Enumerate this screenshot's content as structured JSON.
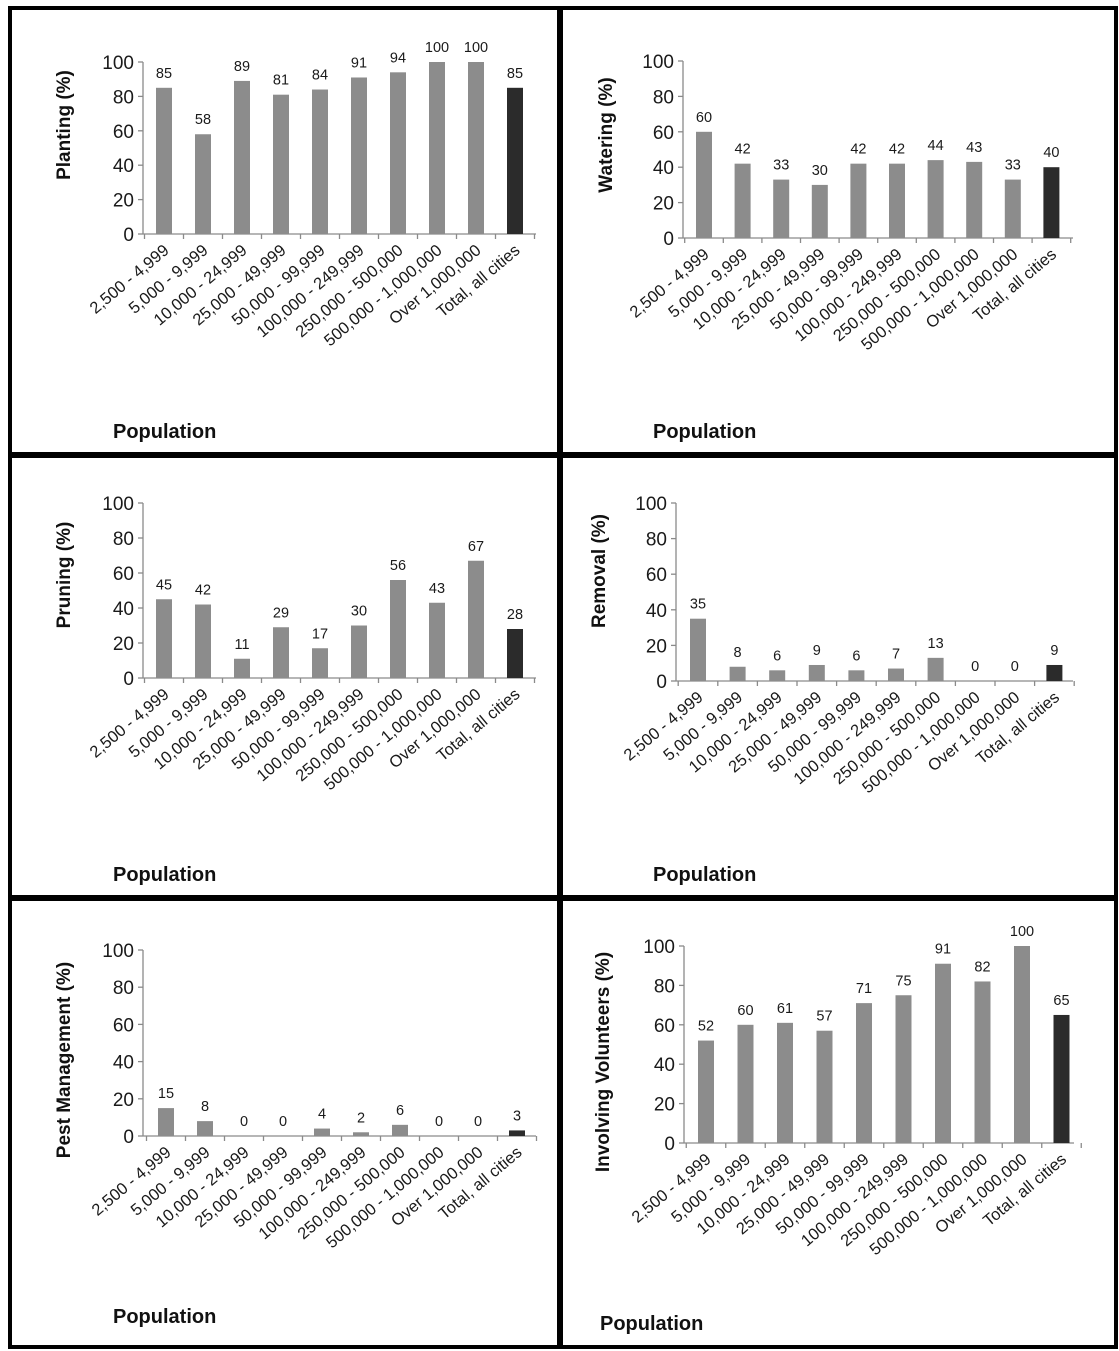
{
  "colors": {
    "bar": "#8c8c8c",
    "total_bar": "#2b2b2b",
    "axis": "#8a8a8a",
    "frame": "#000000"
  },
  "chart_data": [
    {
      "type": "bar",
      "ylabel": "Planting (%)",
      "xlabel": "Population",
      "ylim": [
        0,
        100
      ],
      "yticks": [
        "0",
        "20",
        "40",
        "60",
        "80",
        "100"
      ],
      "categories": [
        "2,500 - 4,999",
        "5,000 - 9,999",
        "10,000 - 24,999",
        "25,000 - 49,999",
        "50,000 - 99,999",
        "100,000 - 249,999",
        "250,000 - 500,000",
        "500,000 - 1,000,000",
        "Over 1,000,000",
        "Total, all cities"
      ],
      "values": [
        85,
        58,
        89,
        81,
        84,
        91,
        94,
        100,
        100,
        85
      ],
      "grid": false
    },
    {
      "type": "bar",
      "ylabel": "Watering (%)",
      "xlabel": "Population",
      "ylim": [
        0,
        100
      ],
      "yticks": [
        "0",
        "20",
        "40",
        "60",
        "80",
        "100"
      ],
      "categories": [
        "2,500 - 4,999",
        "5,000 - 9,999",
        "10,000 - 24,999",
        "25,000 - 49,999",
        "50,000 - 99,999",
        "100,000 - 249,999",
        "250,000 - 500,000",
        "500,000 - 1,000,000",
        "Over 1,000,000",
        "Total, all cities"
      ],
      "values": [
        60,
        42,
        33,
        30,
        42,
        42,
        44,
        43,
        33,
        40
      ],
      "grid": false
    },
    {
      "type": "bar",
      "ylabel": "Pruning (%)",
      "xlabel": "Population",
      "ylim": [
        0,
        100
      ],
      "yticks": [
        "0",
        "20",
        "40",
        "60",
        "80",
        "100"
      ],
      "categories": [
        "2,500 - 4,999",
        "5,000 - 9,999",
        "10,000 - 24,999",
        "25,000 - 49,999",
        "50,000 - 99,999",
        "100,000 - 249,999",
        "250,000 - 500,000",
        "500,000 - 1,000,000",
        "Over 1,000,000",
        "Total, all cities"
      ],
      "values": [
        45,
        42,
        11,
        29,
        17,
        30,
        56,
        43,
        67,
        28
      ],
      "grid": false
    },
    {
      "type": "bar",
      "ylabel": "Removal (%)",
      "xlabel": "Population",
      "ylim": [
        0,
        100
      ],
      "yticks": [
        "0",
        "20",
        "40",
        "60",
        "80",
        "100"
      ],
      "categories": [
        "2,500 - 4,999",
        "5,000 - 9,999",
        "10,000 - 24,999",
        "25,000 - 49,999",
        "50,000 - 99,999",
        "100,000 - 249,999",
        "250,000 - 500,000",
        "500,000 - 1,000,000",
        "Over 1,000,000",
        "Total, all cities"
      ],
      "values": [
        35,
        8,
        6,
        9,
        6,
        7,
        13,
        0,
        0,
        9
      ],
      "grid": false
    },
    {
      "type": "bar",
      "ylabel": "Pest Management  (%)",
      "xlabel": "Population",
      "ylim": [
        0,
        100
      ],
      "yticks": [
        "0",
        "20",
        "40",
        "60",
        "80",
        "100"
      ],
      "categories": [
        "2,500 - 4,999",
        "5,000 - 9,999",
        "10,000 - 24,999",
        "25,000 - 49,999",
        "50,000 - 99,999",
        "100,000 - 249,999",
        "250,000 - 500,000",
        "500,000 - 1,000,000",
        "Over 1,000,000",
        "Total, all cities"
      ],
      "values": [
        15,
        8,
        0,
        0,
        4,
        2,
        6,
        0,
        0,
        3
      ],
      "grid": false
    },
    {
      "type": "bar",
      "ylabel": "Involving Volunteers (%)",
      "xlabel": "Population",
      "ylim": [
        0,
        100
      ],
      "yticks": [
        "0",
        "20",
        "40",
        "60",
        "80",
        "100"
      ],
      "categories": [
        "2,500 - 4,999",
        "5,000 - 9,999",
        "10,000 - 24,999",
        "25,000 - 49,999",
        "50,000 - 99,999",
        "100,000 - 249,999",
        "250,000 - 500,000",
        "500,000 - 1,000,000",
        "Over 1,000,000",
        "Total, all cities"
      ],
      "values": [
        52,
        60,
        61,
        57,
        71,
        75,
        91,
        82,
        100,
        65
      ],
      "grid": false
    }
  ]
}
